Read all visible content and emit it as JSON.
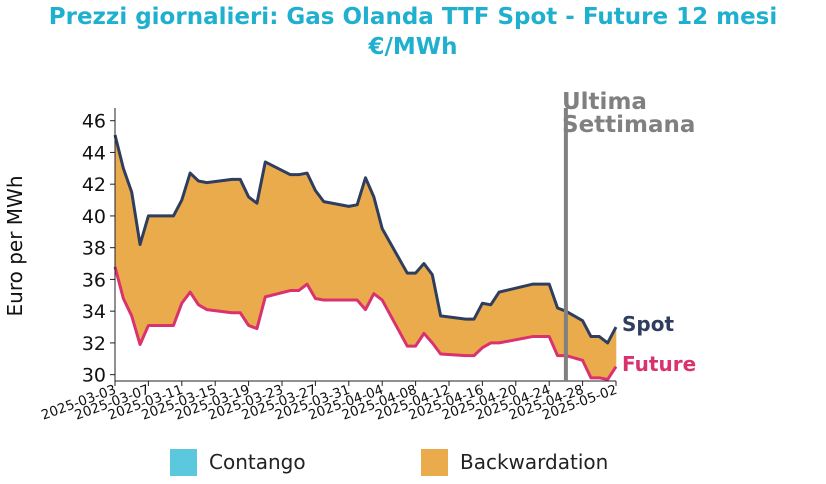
{
  "title_line1": "Prezzi giornalieri: Gas Olanda TTF Spot - Future 12 mesi",
  "title_line2": "€/MWh",
  "colors": {
    "title": "#1fb0cf",
    "spot": "#2f3e5e",
    "future": "#d9326e",
    "backwardation": "#eaab4c",
    "contango": "#5bc8de",
    "week_line": "#808080"
  },
  "legend": {
    "contango": "Contango",
    "backwardation": "Backwardation"
  },
  "annotation": {
    "line1": "Ultima",
    "line2": "Settimana"
  },
  "series_labels": {
    "spot": "Spot",
    "future": "Future"
  },
  "chart_data": {
    "type": "area",
    "ylabel": "Euro per MWh",
    "ylim": [
      29.6,
      46.8
    ],
    "yticks": [
      30,
      32,
      34,
      36,
      38,
      40,
      42,
      44,
      46
    ],
    "xlim": [
      "2025-03-03",
      "2025-05-02"
    ],
    "xticks": [
      "2025-03-03",
      "2025-03-07",
      "2025-03-11",
      "2025-03-15",
      "2025-03-19",
      "2025-03-23",
      "2025-03-27",
      "2025-03-31",
      "2025-04-04",
      "2025-04-08",
      "2025-04-12",
      "2025-04-16",
      "2025-04-20",
      "2025-04-24",
      "2025-04-28",
      "2025-05-02"
    ],
    "last_week_marker": "2025-04-26",
    "x": [
      "2025-03-03",
      "2025-03-04",
      "2025-03-05",
      "2025-03-06",
      "2025-03-07",
      "2025-03-10",
      "2025-03-11",
      "2025-03-12",
      "2025-03-13",
      "2025-03-14",
      "2025-03-17",
      "2025-03-18",
      "2025-03-19",
      "2025-03-20",
      "2025-03-21",
      "2025-03-24",
      "2025-03-25",
      "2025-03-26",
      "2025-03-27",
      "2025-03-28",
      "2025-03-31",
      "2025-04-01",
      "2025-04-02",
      "2025-04-03",
      "2025-04-04",
      "2025-04-07",
      "2025-04-08",
      "2025-04-09",
      "2025-04-10",
      "2025-04-11",
      "2025-04-14",
      "2025-04-15",
      "2025-04-16",
      "2025-04-17",
      "2025-04-18",
      "2025-04-22",
      "2025-04-23",
      "2025-04-24",
      "2025-04-25",
      "2025-04-26",
      "2025-04-28",
      "2025-04-29",
      "2025-04-30",
      "2025-05-01",
      "2025-05-02"
    ],
    "series": [
      {
        "name": "Spot",
        "values": [
          45.1,
          43.0,
          41.5,
          38.2,
          40.0,
          40.0,
          41.0,
          42.7,
          42.2,
          42.1,
          42.3,
          42.3,
          41.2,
          40.8,
          43.4,
          42.6,
          42.6,
          42.7,
          41.6,
          40.9,
          40.6,
          40.7,
          42.4,
          41.2,
          39.2,
          36.4,
          36.4,
          37.0,
          36.3,
          33.7,
          33.5,
          33.5,
          34.5,
          34.4,
          35.2,
          35.7,
          35.7,
          35.7,
          34.2,
          34.0,
          33.4,
          32.4,
          32.4,
          32.0,
          33.0
        ]
      },
      {
        "name": "Future",
        "values": [
          36.8,
          34.8,
          33.7,
          31.9,
          33.1,
          33.1,
          34.5,
          35.2,
          34.4,
          34.1,
          33.9,
          33.9,
          33.1,
          32.9,
          34.9,
          35.3,
          35.3,
          35.7,
          34.8,
          34.7,
          34.7,
          34.7,
          34.1,
          35.1,
          34.7,
          31.8,
          31.8,
          32.6,
          32.0,
          31.3,
          31.2,
          31.2,
          31.7,
          32.0,
          32.0,
          32.4,
          32.4,
          32.4,
          31.2,
          31.2,
          30.9,
          29.8,
          29.8,
          29.7,
          30.5
        ]
      }
    ]
  }
}
